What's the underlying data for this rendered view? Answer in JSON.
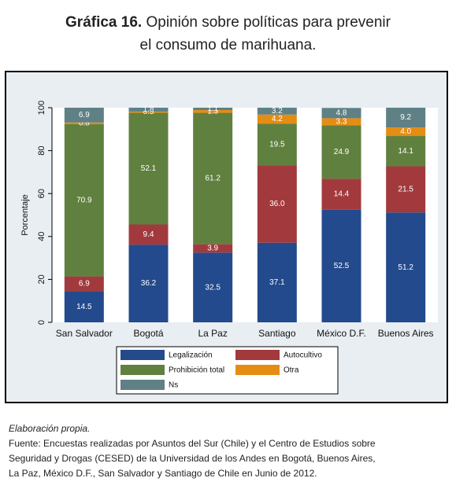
{
  "title": {
    "number": "Gráfica 16.",
    "line1": "Opinión sobre políticas para prevenir",
    "line2": "el consumo de marihuana."
  },
  "chart_data": {
    "type": "bar",
    "stacked": true,
    "categories": [
      "San Salvador",
      "Bogotá",
      "La Paz",
      "Santiago",
      "México D.F.",
      "Buenos Aires"
    ],
    "series": [
      {
        "name": "Legalización",
        "color": "#234a8c",
        "values": [
          14.5,
          36.2,
          32.5,
          37.1,
          52.5,
          51.2
        ]
      },
      {
        "name": "Autocultivo",
        "color": "#a23a3d",
        "values": [
          6.9,
          9.4,
          3.9,
          36.0,
          14.4,
          21.5
        ]
      },
      {
        "name": "Prohibición total",
        "color": "#60803f",
        "values": [
          70.9,
          52.1,
          61.2,
          19.5,
          24.9,
          14.1
        ]
      },
      {
        "name": "Otra",
        "color": "#e58c13",
        "values": [
          0.8,
          0.5,
          1.3,
          4.2,
          3.3,
          4.0
        ]
      },
      {
        "name": "Ns",
        "color": "#5f8085",
        "values": [
          6.9,
          1.8,
          1.1,
          3.2,
          4.8,
          9.2
        ]
      }
    ],
    "segment_labels": [
      [
        "14.5",
        "6.9",
        "70.9",
        "0.8",
        "6.9"
      ],
      [
        "36.2",
        "9.4",
        "52.1",
        "0.5",
        "1.8"
      ],
      [
        "32.5",
        "3.9",
        "61.2",
        "1.3",
        "1.1"
      ],
      [
        "37.1",
        "36.0",
        "19.5",
        "4.2",
        "3.2"
      ],
      [
        "52.5",
        "14.4",
        "24.9",
        "3.3",
        "4.8"
      ],
      [
        "51.2",
        "21.5",
        "14.1",
        "4.0",
        "9.2"
      ]
    ],
    "ylabel": "Porcentaje",
    "xlabel": "",
    "ylim": [
      0,
      100
    ],
    "yticks": [
      0,
      20,
      40,
      60,
      80,
      100
    ],
    "grid": false,
    "legend_position": "bottom"
  },
  "note": {
    "line1": "Elaboración propia.",
    "line2": "Fuente: Encuestas realizadas por Asuntos del Sur (Chile) y el Centro de Estudios sobre",
    "line3": "Seguridad y Drogas (CESED) de la Universidad de los Andes en Bogotá, Buenos Aires,",
    "line4": "La Paz, México D.F., San Salvador y Santiago de Chile en Junio de 2012."
  }
}
